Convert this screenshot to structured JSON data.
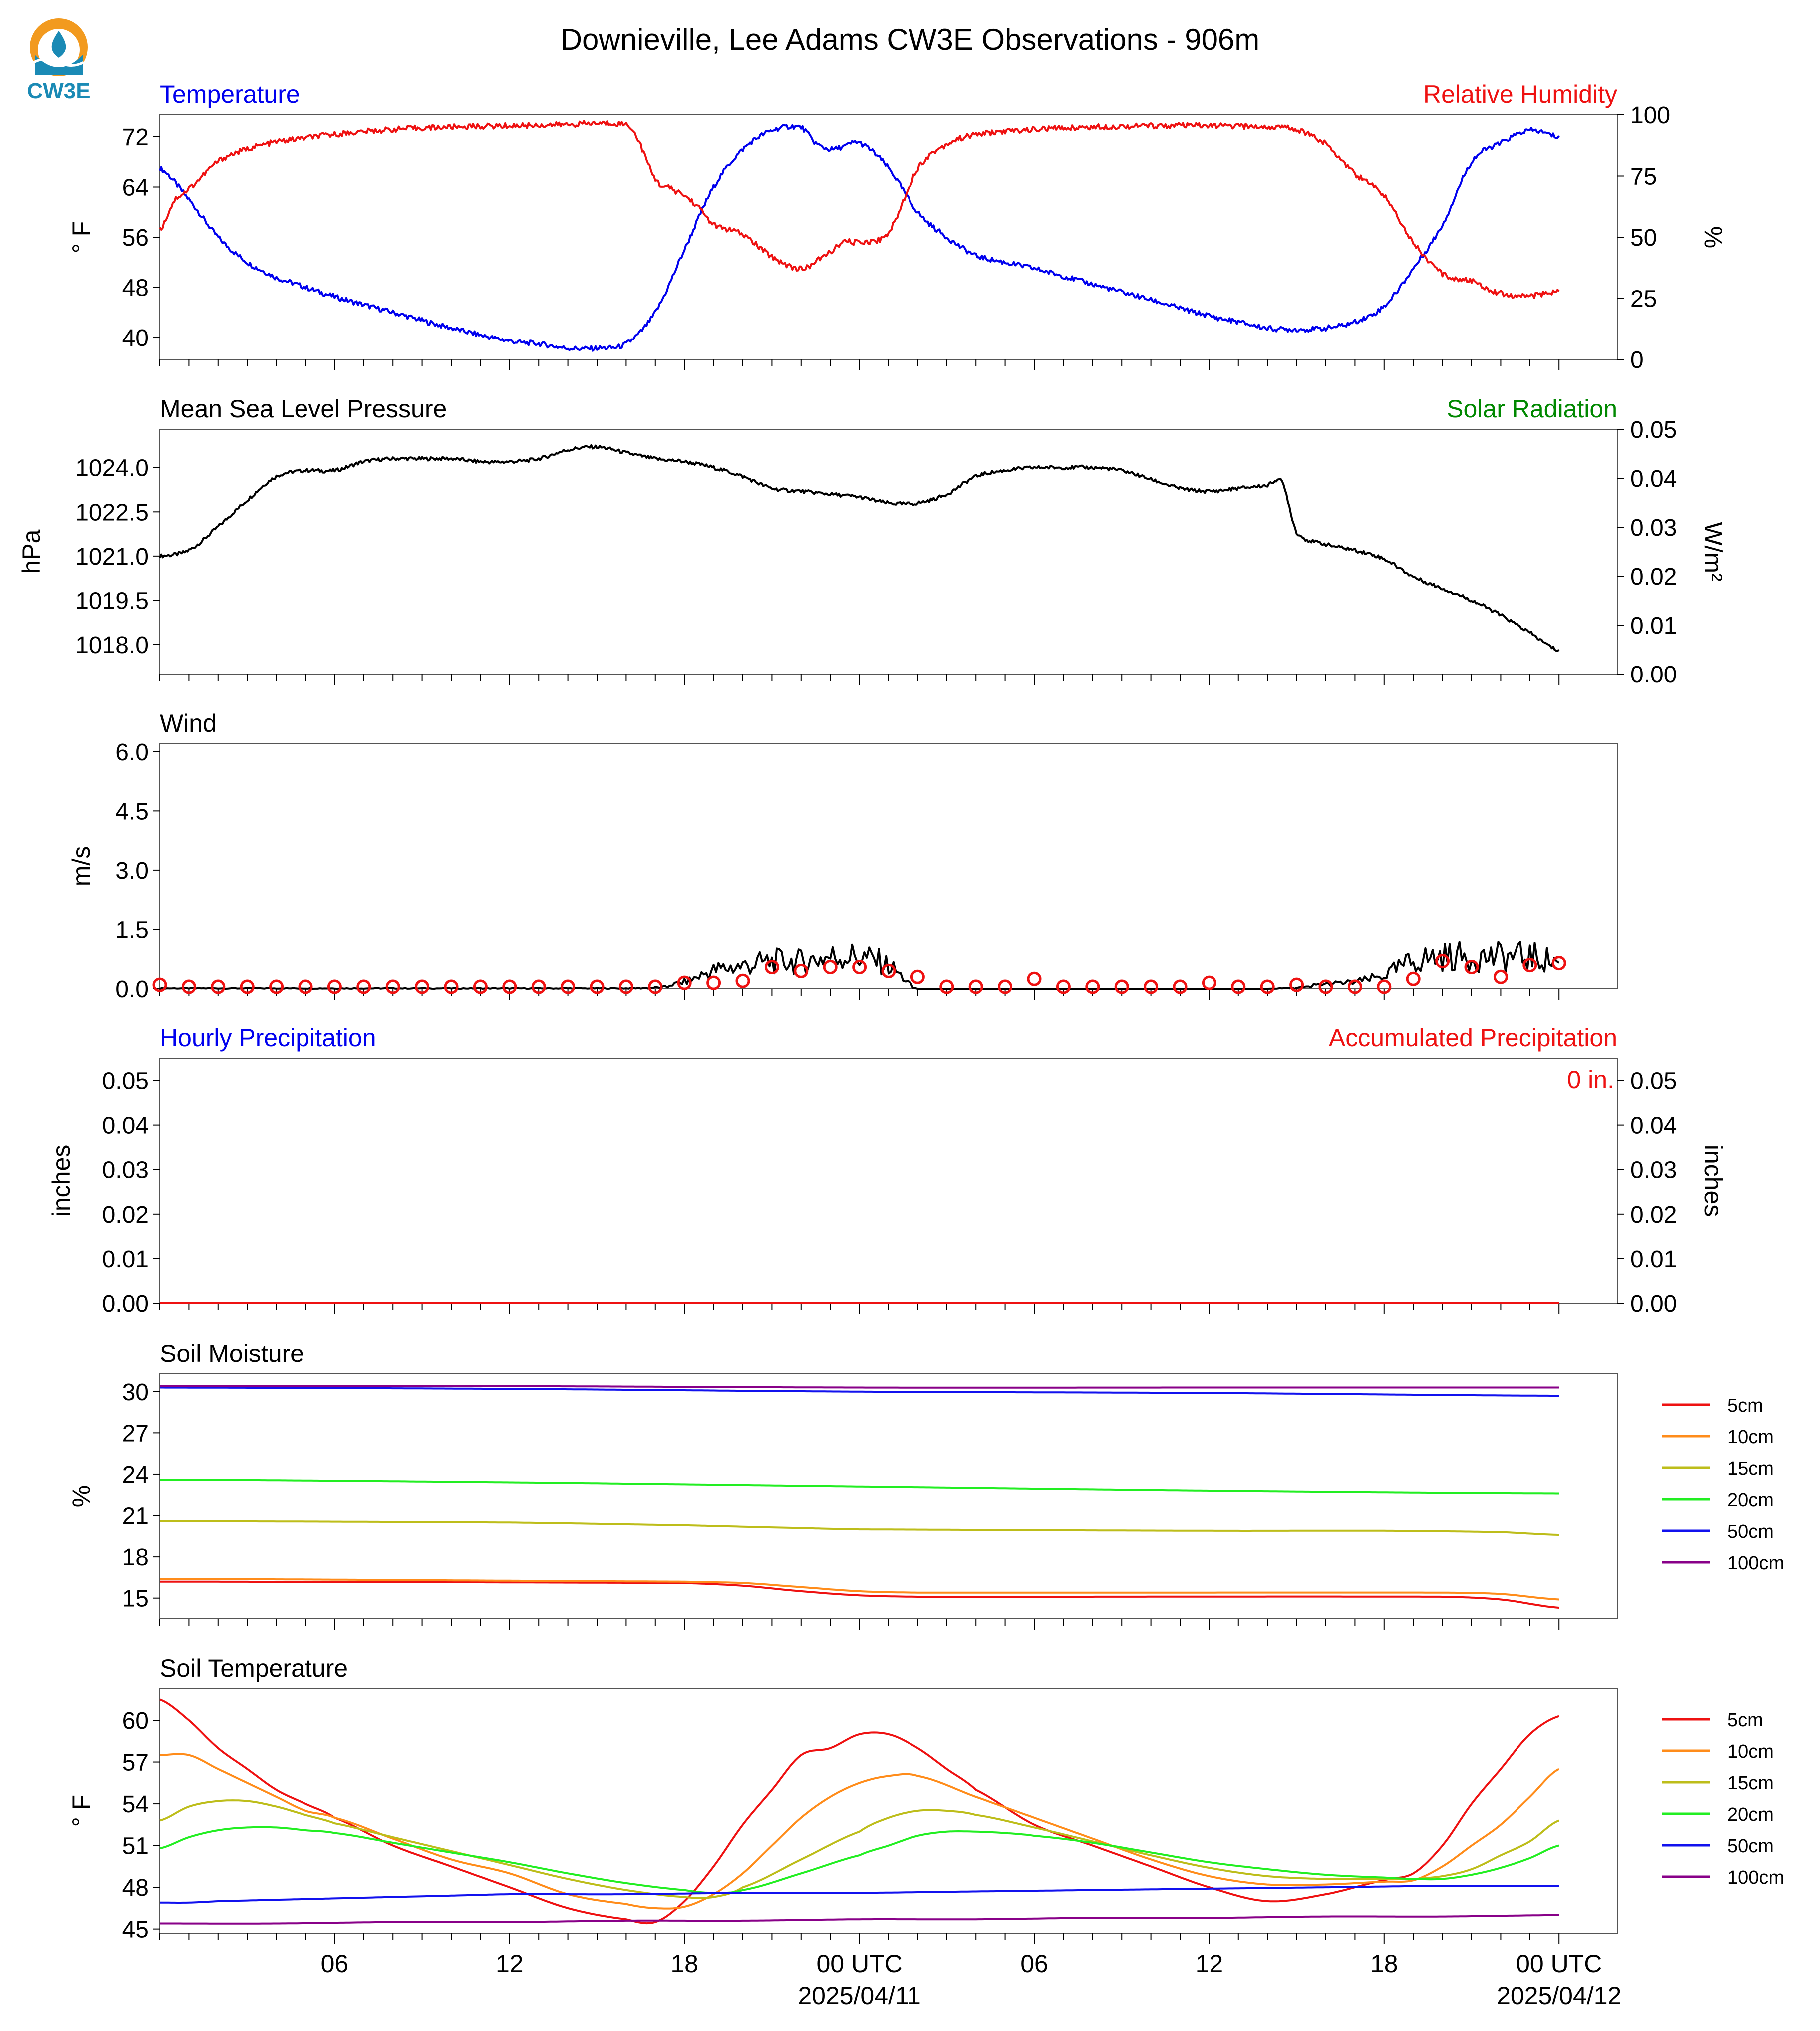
{
  "title": "Downieville, Lee Adams CW3E Observations - 906m",
  "logo": {
    "text": "CW3E",
    "icon": "cw3e-drop-logo"
  },
  "colors": {
    "blue": "#0000ee",
    "red": "#ee1111",
    "green": "#008800",
    "black": "#000000",
    "soil": {
      "5cm": "#ee1111",
      "10cm": "#ff8c1a",
      "15cm": "#bdbd1a",
      "20cm": "#22ee22",
      "50cm": "#1111ee",
      "100cm": "#880088"
    }
  },
  "time_axis": {
    "ticks": [
      {
        "hour": 6,
        "label": "06"
      },
      {
        "hour": 12,
        "label": "12"
      },
      {
        "hour": 18,
        "label": "18"
      },
      {
        "hour": 24,
        "label": "00 UTC",
        "date": "2025/04/11"
      },
      {
        "hour": 30,
        "label": "06"
      },
      {
        "hour": 36,
        "label": "12"
      },
      {
        "hour": 42,
        "label": "18"
      },
      {
        "hour": 48,
        "label": "00 UTC",
        "date": "2025/04/12"
      }
    ]
  },
  "chart_data": [
    {
      "type": "line",
      "title_left": "Temperature",
      "title_right": "Relative Humidity",
      "ylabel": "° F",
      "ylabel_right": "%",
      "ylim": [
        36.5,
        75.5
      ],
      "ylim_right": [
        0,
        100
      ],
      "yticks": [
        "40",
        "48",
        "56",
        "64",
        "72"
      ],
      "yticks_right": [
        "0",
        "25",
        "50",
        "75",
        "100"
      ],
      "series": [
        {
          "axis": "left",
          "color": "blue",
          "x": [
            0,
            1,
            2,
            3,
            4,
            6,
            8,
            10,
            12,
            13,
            14,
            15,
            16,
            17,
            18,
            19,
            20,
            21,
            22,
            22.5,
            23,
            23.5,
            24,
            25,
            26,
            27,
            28,
            30,
            32,
            34,
            36,
            37,
            38,
            39,
            40,
            41,
            42,
            43,
            44,
            45,
            46,
            47,
            48
          ],
          "y": [
            67,
            62,
            56,
            52,
            49.5,
            46.5,
            44,
            41.5,
            39.5,
            39,
            38.3,
            38.3,
            39,
            44,
            54,
            64,
            70,
            73,
            73.5,
            71,
            70,
            70.5,
            71,
            67,
            60,
            56,
            53,
            51,
            48.5,
            46,
            43.5,
            42.5,
            41.5,
            41.3,
            41.5,
            42.5,
            45,
            51,
            58,
            68,
            71,
            73,
            72
          ]
        },
        {
          "axis": "right",
          "color": "red",
          "x": [
            0,
            0.5,
            1,
            2,
            3,
            4,
            6,
            8,
            10,
            12,
            14,
            15,
            16,
            16.3,
            17,
            17.5,
            18,
            18.5,
            19,
            20,
            21,
            22,
            22.5,
            23,
            23.5,
            24,
            25,
            26,
            27,
            28,
            30,
            32,
            34,
            36,
            38,
            39,
            40,
            41,
            42,
            43,
            44,
            45,
            46,
            47,
            48
          ],
          "y": [
            53,
            65,
            70,
            81,
            86,
            89,
            92,
            94,
            95,
            95.5,
            96,
            96.5,
            96,
            92,
            74,
            70,
            67,
            62,
            55,
            51,
            42,
            37,
            40,
            44,
            48,
            48,
            52,
            78,
            88,
            92,
            94,
            95,
            95.5,
            95.5,
            95,
            94,
            88,
            76,
            67,
            48,
            35,
            32,
            27,
            26,
            28
          ]
        }
      ]
    },
    {
      "type": "line",
      "title_left": "Mean Sea Level Pressure",
      "title_right": "Solar Radiation",
      "ylabel": "hPa",
      "ylabel_right": "W/m²",
      "ylim": [
        1017.0,
        1025.3
      ],
      "ylim_right": [
        0,
        0.05
      ],
      "yticks": [
        "1018.0",
        "1019.5",
        "1021.0",
        "1022.5",
        "1024.0"
      ],
      "yticks_right": [
        "0.00",
        "0.01",
        "0.02",
        "0.03",
        "0.04",
        "0.05"
      ],
      "series": [
        {
          "axis": "left",
          "color": "black",
          "x": [
            0,
            1,
            2,
            3,
            4,
            5,
            6,
            7,
            8,
            9,
            10,
            11,
            12,
            13,
            14,
            15,
            16,
            17,
            18,
            19,
            20,
            21,
            22,
            23,
            24,
            25,
            26,
            27,
            28,
            29,
            30,
            31,
            32,
            33,
            34,
            35,
            36,
            37,
            38,
            38.5,
            39,
            40,
            41,
            42,
            43,
            44,
            45,
            46,
            47,
            48
          ],
          "y": [
            1021.0,
            1021.2,
            1022.0,
            1022.9,
            1023.7,
            1023.9,
            1023.9,
            1024.2,
            1024.3,
            1024.3,
            1024.3,
            1024.2,
            1024.2,
            1024.3,
            1024.6,
            1024.7,
            1024.5,
            1024.3,
            1024.2,
            1024.0,
            1023.7,
            1023.3,
            1023.2,
            1023.1,
            1023.0,
            1022.8,
            1022.8,
            1023.1,
            1023.7,
            1023.9,
            1024.0,
            1024.0,
            1024.0,
            1023.9,
            1023.6,
            1023.3,
            1023.2,
            1023.3,
            1023.4,
            1023.5,
            1021.8,
            1021.4,
            1021.2,
            1020.9,
            1020.3,
            1019.9,
            1019.5,
            1019.0,
            1018.4,
            1017.8
          ]
        }
      ]
    },
    {
      "type": "line",
      "title_left": "Wind",
      "ylabel": "m/s",
      "ylim": [
        0,
        6.2
      ],
      "yticks": [
        "0.0",
        "1.5",
        "3.0",
        "4.5",
        "6.0"
      ],
      "series": [
        {
          "color": "black",
          "x": [
            0,
            16,
            17,
            18,
            19,
            20,
            21,
            22,
            23,
            24,
            25,
            26,
            38,
            40,
            41,
            42,
            43,
            44,
            45,
            46,
            47,
            48
          ],
          "y": [
            0.02,
            0.02,
            0.05,
            0.15,
            0.4,
            0.5,
            0.6,
            0.6,
            0.7,
            0.7,
            0.5,
            0.0,
            0.0,
            0.1,
            0.15,
            0.3,
            0.6,
            0.7,
            0.7,
            0.7,
            0.7,
            0.6
          ]
        },
        {
          "name": "hourly",
          "type": "scatter",
          "color": "red",
          "x": [
            0,
            1,
            2,
            3,
            4,
            5,
            6,
            7,
            8,
            9,
            10,
            11,
            12,
            13,
            14,
            15,
            16,
            17,
            18,
            19,
            20,
            21,
            22,
            23,
            24,
            25,
            26,
            27,
            28,
            29,
            30,
            31,
            32,
            33,
            34,
            35,
            36,
            37,
            38,
            39,
            40,
            41,
            42,
            43,
            44,
            45,
            46,
            47,
            48
          ],
          "y": [
            0.1,
            0.05,
            0.05,
            0.05,
            0.05,
            0.05,
            0.05,
            0.05,
            0.05,
            0.05,
            0.05,
            0.05,
            0.05,
            0.05,
            0.05,
            0.05,
            0.05,
            0.05,
            0.15,
            0.15,
            0.2,
            0.55,
            0.45,
            0.55,
            0.55,
            0.45,
            0.3,
            0.05,
            0.05,
            0.05,
            0.25,
            0.05,
            0.05,
            0.05,
            0.05,
            0.05,
            0.15,
            0.05,
            0.05,
            0.1,
            0.05,
            0.05,
            0.05,
            0.25,
            0.7,
            0.55,
            0.3,
            0.6,
            0.65
          ]
        }
      ]
    },
    {
      "type": "line",
      "title_left": "Hourly Precipitation",
      "title_right": "Accumulated Precipitation",
      "annotation": "0 in.",
      "ylabel": "inches",
      "ylabel_right": "inches",
      "ylim": [
        0,
        0.055
      ],
      "ylim_right": [
        0,
        0.055
      ],
      "yticks": [
        "0.00",
        "0.01",
        "0.02",
        "0.03",
        "0.04",
        "0.05"
      ],
      "yticks_right": [
        "0.00",
        "0.01",
        "0.02",
        "0.03",
        "0.04",
        "0.05"
      ],
      "series": [
        {
          "color": "red",
          "x": [
            0,
            48
          ],
          "y": [
            0,
            0
          ]
        }
      ]
    },
    {
      "type": "line",
      "title_left": "Soil Moisture",
      "ylabel": "%",
      "ylim": [
        13.5,
        31.3
      ],
      "yticks": [
        "15",
        "18",
        "21",
        "24",
        "27",
        "30"
      ],
      "legend": [
        "5cm",
        "10cm",
        "15cm",
        "20cm",
        "50cm",
        "100cm"
      ],
      "series": [
        {
          "name": "5cm",
          "x": [
            0,
            18,
            20,
            22,
            24,
            26,
            44,
            46,
            48
          ],
          "y": [
            16.2,
            16.1,
            15.9,
            15.5,
            15.2,
            15.1,
            15.1,
            14.9,
            14.3
          ]
        },
        {
          "name": "10cm",
          "x": [
            0,
            18,
            20,
            22,
            24,
            26,
            44,
            46,
            48
          ],
          "y": [
            16.4,
            16.2,
            16.1,
            15.8,
            15.5,
            15.4,
            15.4,
            15.3,
            14.9
          ]
        },
        {
          "name": "15cm",
          "x": [
            0,
            12,
            18,
            22,
            24,
            36,
            42,
            46,
            48
          ],
          "y": [
            20.6,
            20.5,
            20.3,
            20.1,
            20.0,
            19.9,
            19.9,
            19.8,
            19.6
          ]
        },
        {
          "name": "20cm",
          "x": [
            0,
            12,
            24,
            36,
            48
          ],
          "y": [
            23.6,
            23.4,
            23.1,
            22.8,
            22.6
          ]
        },
        {
          "name": "50cm",
          "x": [
            0,
            12,
            24,
            36,
            48
          ],
          "y": [
            30.3,
            30.2,
            30.0,
            29.9,
            29.7
          ]
        },
        {
          "name": "100cm",
          "x": [
            0,
            12,
            24,
            36,
            48
          ],
          "y": [
            30.4,
            30.4,
            30.3,
            30.3,
            30.3
          ]
        }
      ]
    },
    {
      "type": "line",
      "title_left": "Soil Temperature",
      "ylabel": "° F",
      "ylim": [
        44.7,
        62.3
      ],
      "yticks": [
        "45",
        "48",
        "51",
        "54",
        "57",
        "60"
      ],
      "legend": [
        "5cm",
        "10cm",
        "15cm",
        "20cm",
        "50cm",
        "100cm"
      ],
      "series": [
        {
          "name": "5cm",
          "x": [
            0,
            1,
            2,
            3,
            4,
            5,
            6,
            8,
            10,
            12,
            14,
            16,
            17,
            18,
            19,
            20,
            21,
            22,
            23,
            24,
            25,
            26,
            27,
            28,
            30,
            32,
            34,
            36,
            38,
            40,
            42,
            43,
            44,
            45,
            46,
            47,
            48
          ],
          "y": [
            61.5,
            60,
            58,
            56.5,
            55,
            54,
            53,
            51,
            49.5,
            48,
            46.5,
            45.7,
            45.5,
            47,
            49.5,
            52.5,
            55,
            57.5,
            58,
            59,
            59,
            58,
            56.5,
            55,
            52.5,
            51,
            49.5,
            48,
            47,
            47.5,
            48.5,
            49,
            51,
            54,
            56.5,
            59,
            60.3
          ]
        },
        {
          "name": "10cm",
          "x": [
            0,
            1,
            2,
            3,
            4,
            5,
            6,
            8,
            10,
            12,
            14,
            16,
            17,
            18,
            19,
            20,
            21,
            22,
            23,
            24,
            25,
            26,
            28,
            30,
            32,
            34,
            36,
            38,
            40,
            42,
            43,
            44,
            45,
            46,
            47,
            48
          ],
          "y": [
            57.5,
            57.5,
            56.5,
            55.5,
            54.5,
            53.5,
            53,
            51.5,
            50,
            49,
            47.5,
            46.8,
            46.5,
            46.6,
            47.5,
            49,
            51,
            53,
            54.5,
            55.5,
            56,
            56,
            54.5,
            53,
            51.5,
            50,
            48.8,
            48.2,
            48.2,
            48.4,
            48.5,
            49.5,
            51,
            52.5,
            54.5,
            56.5
          ]
        },
        {
          "name": "15cm",
          "x": [
            0,
            1,
            2,
            3,
            4,
            5,
            6,
            8,
            10,
            12,
            14,
            16,
            18,
            19,
            20,
            22,
            24,
            25,
            26,
            27,
            28,
            30,
            32,
            34,
            36,
            38,
            40,
            42,
            43,
            44,
            45,
            46,
            47,
            48
          ],
          "y": [
            52.8,
            53.8,
            54.2,
            54.2,
            53.8,
            53.2,
            52.6,
            51.6,
            50.6,
            49.6,
            48.6,
            47.8,
            47.3,
            47.3,
            48,
            50,
            52,
            53,
            53.5,
            53.5,
            53.2,
            52.3,
            51.3,
            50.3,
            49.4,
            48.8,
            48.6,
            48.6,
            48.6,
            48.8,
            49.3,
            50.3,
            51.3,
            52.8
          ]
        },
        {
          "name": "20cm",
          "x": [
            0,
            1,
            2,
            3,
            4,
            5,
            6,
            8,
            10,
            12,
            14,
            16,
            18,
            19,
            20,
            22,
            24,
            25,
            26,
            27,
            28,
            29,
            30,
            32,
            34,
            36,
            38,
            40,
            42,
            43,
            44,
            45,
            46,
            47,
            48
          ],
          "y": [
            50.8,
            51.6,
            52.1,
            52.3,
            52.3,
            52.1,
            51.9,
            51.2,
            50.5,
            49.8,
            49,
            48.3,
            47.8,
            47.6,
            47.8,
            49,
            50.3,
            51,
            51.7,
            52,
            52,
            51.9,
            51.7,
            51.2,
            50.5,
            49.8,
            49.3,
            48.9,
            48.7,
            48.6,
            48.6,
            48.9,
            49.4,
            50.1,
            51
          ]
        },
        {
          "name": "50cm",
          "x": [
            0,
            1,
            2,
            4,
            6,
            8,
            10,
            12,
            16,
            20,
            24,
            28,
            32,
            36,
            40,
            44,
            48
          ],
          "y": [
            46.9,
            46.9,
            47.0,
            47.1,
            47.2,
            47.3,
            47.4,
            47.5,
            47.5,
            47.6,
            47.6,
            47.7,
            47.8,
            47.9,
            48.0,
            48.1,
            48.1
          ]
        },
        {
          "name": "100cm",
          "x": [
            0,
            4,
            8,
            12,
            16,
            20,
            24,
            28,
            32,
            36,
            40,
            44,
            48
          ],
          "y": [
            45.4,
            45.4,
            45.5,
            45.5,
            45.6,
            45.6,
            45.7,
            45.7,
            45.8,
            45.8,
            45.9,
            45.9,
            46.0
          ]
        }
      ]
    }
  ]
}
